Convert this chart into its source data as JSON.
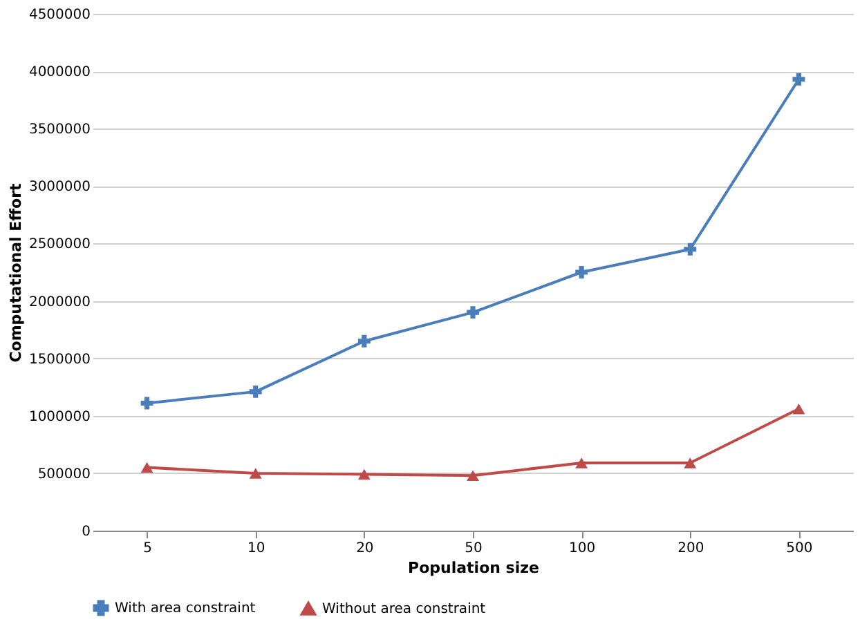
{
  "chart_data": {
    "type": "line",
    "xlabel": "Population size",
    "ylabel": "Computational Effort",
    "categories": [
      "5",
      "10",
      "20",
      "50",
      "100",
      "200",
      "500"
    ],
    "series": [
      {
        "name": "With area constraint",
        "color": "#4a7ebb",
        "marker": "cross",
        "values": [
          1110000,
          1210000,
          1650000,
          1900000,
          2250000,
          2450000,
          3930000
        ]
      },
      {
        "name": "Without area constraint",
        "color": "#be4b48",
        "marker": "triangle",
        "values": [
          550000,
          500000,
          490000,
          480000,
          590000,
          590000,
          1060000
        ]
      }
    ],
    "ylim": [
      0,
      4500000
    ],
    "yticks": [
      0,
      500000,
      1000000,
      1500000,
      2000000,
      2500000,
      3000000,
      3500000,
      4000000,
      4500000
    ],
    "grid": "y",
    "legend": "bottom",
    "line_style": "solid"
  }
}
